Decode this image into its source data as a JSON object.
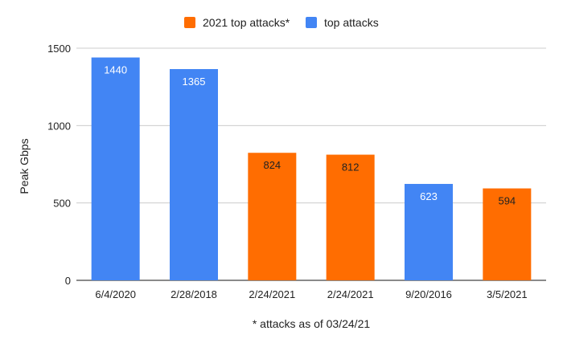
{
  "chart_data": {
    "type": "bar",
    "categories": [
      "6/4/2020",
      "2/28/2018",
      "2/24/2021",
      "2/24/2021",
      "9/20/2016",
      "3/5/2021"
    ],
    "values": [
      1440,
      1365,
      824,
      812,
      623,
      594
    ],
    "value_labels": [
      "1440",
      "1365",
      "824",
      "812",
      "623",
      "594"
    ],
    "bar_series": [
      "top attacks",
      "top attacks",
      "2021 top attacks*",
      "2021 top attacks*",
      "top attacks",
      "2021 top attacks*"
    ],
    "series": [
      {
        "name": "2021 top attacks*",
        "color": "#ff6d01"
      },
      {
        "name": "top attacks",
        "color": "#4285f4"
      }
    ],
    "xlabel": "* attacks as of 03/24/21",
    "ylabel": "Peak Gbps",
    "ylim": [
      0,
      1500
    ],
    "yticks": [
      0,
      500,
      1000,
      1500
    ],
    "grid": true,
    "legend_position": "top-center",
    "label_colors": {
      "top attacks": "#ffffff",
      "2021 top attacks*": "#222222"
    }
  }
}
